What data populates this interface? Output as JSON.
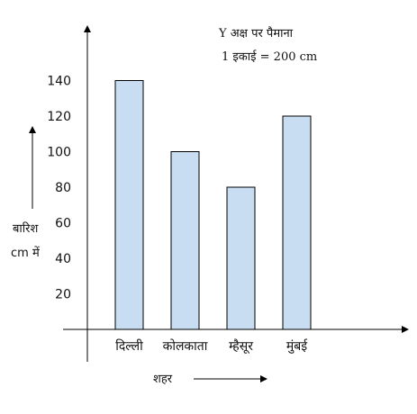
{
  "chart_data": {
    "type": "bar",
    "categories": [
      "दिल्ली",
      "कोलकाता",
      "म्हैसूर",
      "मुंबई"
    ],
    "values": [
      140,
      100,
      80,
      120
    ],
    "ylim": [
      0,
      160
    ],
    "y_ticks": [
      20,
      40,
      60,
      80,
      100,
      120,
      140
    ],
    "xlabel": "शहर",
    "ylabel_line1": "बारिश",
    "ylabel_line2": "cm में",
    "scale_note_line1": "Y अक्ष पर पैमाना",
    "scale_note_line2": "1 इकाई = 200 cm",
    "bar_color": "#c8dcf2",
    "grid": false
  }
}
